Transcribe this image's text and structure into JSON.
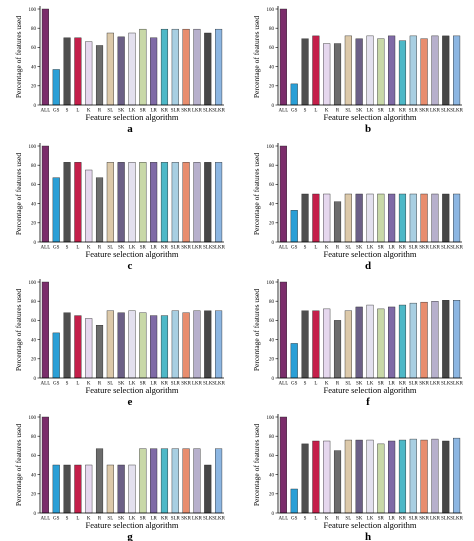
{
  "figure": {
    "panel_letters": [
      "a",
      "b",
      "c",
      "d",
      "e",
      "f",
      "g",
      "h"
    ]
  },
  "chart_data": [
    {
      "type": "bar",
      "panel": "a",
      "xlabel": "Feature selection algorithm",
      "ylabel": "Percentage of features used",
      "ylim": [
        0,
        100
      ],
      "yticks": [
        0,
        20,
        40,
        60,
        80,
        100
      ],
      "categories": [
        "ALL",
        "GS",
        "S",
        "L",
        "K",
        "R",
        "SL",
        "SK",
        "LK",
        "SR",
        "LR",
        "KR",
        "SLR",
        "SKR",
        "LKR",
        "SLK",
        "SLKR"
      ],
      "values": [
        100,
        37,
        70,
        70,
        66,
        62,
        75,
        71,
        75,
        79,
        70,
        79,
        79,
        79,
        79,
        75,
        79
      ]
    },
    {
      "type": "bar",
      "panel": "b",
      "xlabel": "Feature selection algorithm",
      "ylabel": "Percentage of features used",
      "ylim": [
        0,
        100
      ],
      "yticks": [
        0,
        20,
        40,
        60,
        80,
        100
      ],
      "categories": [
        "ALL",
        "GS",
        "S",
        "L",
        "K",
        "R",
        "SL",
        "SK",
        "LK",
        "SR",
        "LR",
        "KR",
        "SLR",
        "SKR",
        "LKR",
        "SLK",
        "SLKR"
      ],
      "values": [
        100,
        22,
        69,
        72,
        64,
        64,
        72,
        69,
        72,
        69,
        72,
        67,
        72,
        69,
        72,
        72,
        72
      ]
    },
    {
      "type": "bar",
      "panel": "c",
      "xlabel": "Feature selection algorithm",
      "ylabel": "Percentage of features used",
      "ylim": [
        0,
        100
      ],
      "yticks": [
        0,
        20,
        40,
        60,
        80,
        100
      ],
      "categories": [
        "ALL",
        "GS",
        "S",
        "L",
        "K",
        "R",
        "SL",
        "SK",
        "LK",
        "SR",
        "LR",
        "KR",
        "SLR",
        "SKR",
        "LKR",
        "SLK",
        "SLKR"
      ],
      "values": [
        100,
        67,
        83,
        83,
        75,
        67,
        83,
        83,
        83,
        83,
        83,
        83,
        83,
        83,
        83,
        83,
        83
      ]
    },
    {
      "type": "bar",
      "panel": "d",
      "xlabel": "Feature selection algorithm",
      "ylabel": "Percentage of features used",
      "ylim": [
        0,
        100
      ],
      "yticks": [
        0,
        20,
        40,
        60,
        80,
        100
      ],
      "categories": [
        "ALL",
        "GS",
        "S",
        "L",
        "K",
        "R",
        "SL",
        "SK",
        "LK",
        "SR",
        "LR",
        "KR",
        "SLR",
        "SKR",
        "LKR",
        "SLK",
        "SLKR"
      ],
      "values": [
        100,
        33,
        50,
        50,
        50,
        42,
        50,
        50,
        50,
        50,
        50,
        50,
        50,
        50,
        50,
        50,
        50
      ]
    },
    {
      "type": "bar",
      "panel": "e",
      "xlabel": "Feature selection algorithm",
      "ylabel": "Percentage of features used",
      "ylim": [
        0,
        100
      ],
      "yticks": [
        0,
        20,
        40,
        60,
        80,
        100
      ],
      "categories": [
        "ALL",
        "GS",
        "S",
        "L",
        "K",
        "R",
        "SL",
        "SK",
        "LK",
        "SR",
        "LR",
        "KR",
        "SLR",
        "SKR",
        "LKR",
        "SLK",
        "SLKR"
      ],
      "values": [
        100,
        47,
        68,
        65,
        62,
        55,
        70,
        68,
        70,
        68,
        65,
        65,
        70,
        68,
        70,
        70,
        70
      ]
    },
    {
      "type": "bar",
      "panel": "f",
      "xlabel": "Feature selection algorithm",
      "ylabel": "Percentage of features used",
      "ylim": [
        0,
        100
      ],
      "yticks": [
        0,
        20,
        40,
        60,
        80,
        100
      ],
      "categories": [
        "ALL",
        "GS",
        "S",
        "L",
        "K",
        "R",
        "SL",
        "SK",
        "LK",
        "SR",
        "LR",
        "KR",
        "SLR",
        "SKR",
        "LKR",
        "SLK",
        "SLKR"
      ],
      "values": [
        100,
        36,
        70,
        70,
        72,
        60,
        70,
        74,
        76,
        72,
        74,
        76,
        78,
        79,
        80,
        81,
        81
      ]
    },
    {
      "type": "bar",
      "panel": "g",
      "xlabel": "Feature selection algorithm",
      "ylabel": "Percentage of features used",
      "ylim": [
        0,
        100
      ],
      "yticks": [
        0,
        20,
        40,
        60,
        80,
        100
      ],
      "categories": [
        "ALL",
        "GS",
        "S",
        "L",
        "K",
        "R",
        "SL",
        "SK",
        "LK",
        "SR",
        "LR",
        "KR",
        "SLR",
        "SKR",
        "LKR",
        "SLK",
        "SLKR"
      ],
      "values": [
        100,
        50,
        50,
        50,
        50,
        67,
        50,
        50,
        50,
        67,
        67,
        67,
        67,
        67,
        67,
        50,
        67
      ]
    },
    {
      "type": "bar",
      "panel": "h",
      "xlabel": "Feature selection algorithm",
      "ylabel": "Percentage of features used",
      "ylim": [
        0,
        100
      ],
      "yticks": [
        0,
        20,
        40,
        60,
        80,
        100
      ],
      "categories": [
        "ALL",
        "GS",
        "S",
        "L",
        "K",
        "R",
        "SL",
        "SK",
        "LK",
        "SR",
        "LR",
        "KR",
        "SLR",
        "SKR",
        "LKR",
        "SLK",
        "SLKR"
      ],
      "values": [
        100,
        25,
        72,
        75,
        75,
        65,
        76,
        76,
        76,
        72,
        75,
        76,
        77,
        76,
        77,
        75,
        78
      ]
    }
  ],
  "bar_colors": [
    "#7b2d6b",
    "#2a9fd6",
    "#4e4e4e",
    "#c41f4a",
    "#e5d7ee",
    "#6c6c6c",
    "#dcc9aa",
    "#6b5f86",
    "#e3e0ee",
    "#c8d8a8",
    "#7f6aa6",
    "#4db8c7",
    "#a8cfe2",
    "#e88d6e",
    "#b7b0cc",
    "#474747",
    "#8cb6e2"
  ]
}
